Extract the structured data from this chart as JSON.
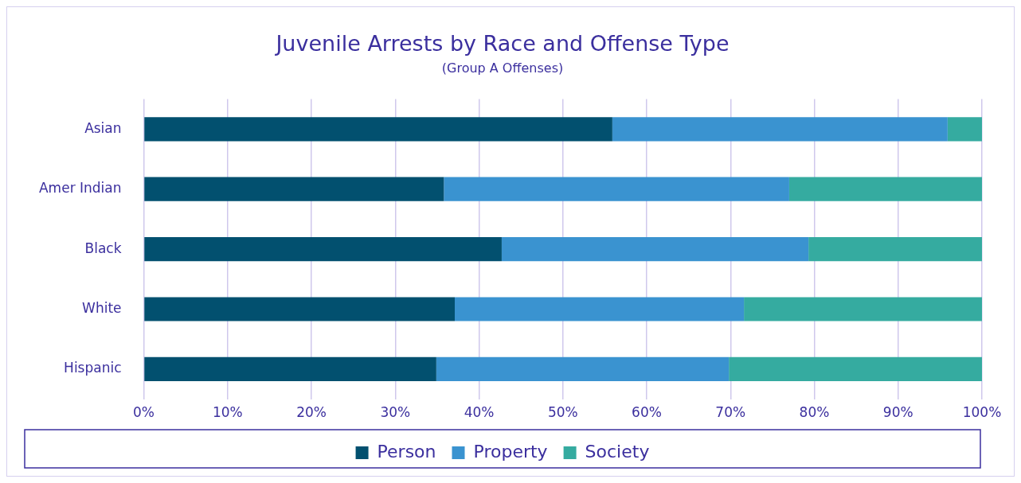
{
  "chart_data": {
    "type": "bar",
    "orientation": "horizontal",
    "stacked": true,
    "title": "Juvenile Arrests by Race and Offense Type",
    "subtitle": "(Group A Offenses)",
    "categories": [
      "Asian",
      "Amer Indian",
      "Black",
      "White",
      "Hispanic"
    ],
    "series": [
      {
        "name": "Person",
        "color": "#02506f",
        "values": [
          55.9,
          35.8,
          42.7,
          37.1,
          34.9
        ]
      },
      {
        "name": "Property",
        "color": "#3a93d0",
        "values": [
          40.0,
          41.2,
          36.6,
          34.5,
          34.9
        ]
      },
      {
        "name": "Society",
        "color": "#35aba0",
        "values": [
          4.1,
          23.0,
          20.7,
          28.4,
          30.2
        ]
      }
    ],
    "xlim": [
      0,
      100
    ],
    "xticks": [
      {
        "value": 0,
        "label": "0%"
      },
      {
        "value": 10,
        "label": "10%"
      },
      {
        "value": 20,
        "label": "20%"
      },
      {
        "value": 30,
        "label": "30%"
      },
      {
        "value": 40,
        "label": "40%"
      },
      {
        "value": 50,
        "label": "50%"
      },
      {
        "value": 60,
        "label": "60%"
      },
      {
        "value": 70,
        "label": "70%"
      },
      {
        "value": 80,
        "label": "80%"
      },
      {
        "value": 90,
        "label": "90%"
      },
      {
        "value": 100,
        "label": "100%"
      }
    ],
    "grid": "x",
    "legend": "bottom"
  }
}
